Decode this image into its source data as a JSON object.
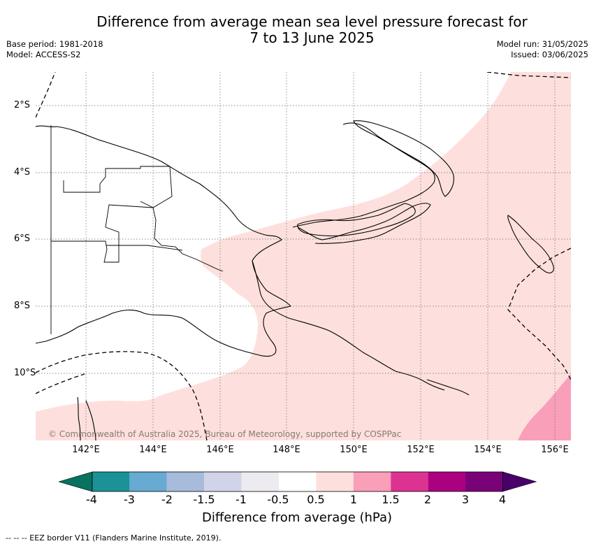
{
  "title": {
    "line1": "Difference from average mean sea level pressure forecast for",
    "line2": "7 to 13 June 2025"
  },
  "meta": {
    "base_period": "Base period: 1981-2018",
    "model": "Model: ACCESS-S2",
    "model_run": "Model run: 31/05/2025",
    "issued": "Issued: 03/06/2025"
  },
  "map": {
    "lon_range": [
      140.5,
      156.5
    ],
    "lat_range": [
      -12.0,
      -1.0
    ],
    "x_ticks": [
      "142°E",
      "144°E",
      "146°E",
      "148°E",
      "150°E",
      "152°E",
      "154°E",
      "156°E"
    ],
    "y_ticks": [
      "2°S",
      "4°S",
      "6°S",
      "8°S",
      "10°S"
    ],
    "copyright": "© Commonwealth of Australia 2025, Bureau of Meteorology, supported by COSPPac",
    "region_colors": {
      "band_0_5_to_1": "#fde0dd",
      "band_1_to_1_5": "#f99fba",
      "land_outline": "#000000",
      "eez_border": "#000000",
      "gridline": "#666666"
    }
  },
  "colorbar": {
    "colors": [
      "#07725f",
      "#1a9296",
      "#67aad2",
      "#a7bbdb",
      "#d1d3e8",
      "#edebef",
      "#ffffff",
      "#fde0dd",
      "#f99fba",
      "#dc3393",
      "#ab0080",
      "#7a0279",
      "#49006a"
    ],
    "ticks": [
      "-4",
      "-3",
      "-2",
      "-1.5",
      "-1",
      "-0.5",
      "0.5",
      "1",
      "1.5",
      "2",
      "3",
      "4"
    ],
    "label": "Difference from average (hPa)"
  },
  "footnote": "--  --  -- EEZ border V11 (Flanders Marine Institute, 2019)."
}
